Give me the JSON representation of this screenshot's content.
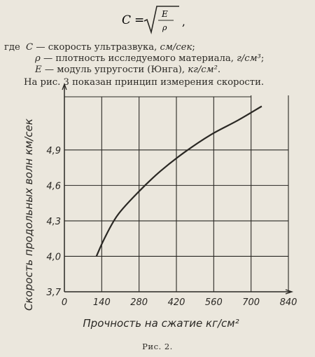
{
  "formula": {
    "lhs": "C",
    "eq": "=",
    "numerator": "E",
    "denominator": "ρ",
    "trailing": ","
  },
  "definitions": [
    {
      "prefix": "где",
      "symbol": "C",
      "text": " — скорость ультразвука, ",
      "unit": "см/сек",
      "tail": ";"
    },
    {
      "prefix": "",
      "symbol": "ρ",
      "text": " — плотность исследуемого материала, ",
      "unit": "г/см³",
      "tail": ";"
    },
    {
      "prefix": "",
      "symbol": "E",
      "text": " — модуль упругости (Юнга), ",
      "unit": "кг/см²",
      "tail": "."
    }
  ],
  "intro_line": "На рис. 3 показан принцип измерения скорости.",
  "chart_data": {
    "type": "line",
    "x": [
      120,
      150,
      200,
      280,
      360,
      450,
      550,
      650,
      740
    ],
    "y": [
      4.0,
      4.15,
      4.35,
      4.55,
      4.72,
      4.88,
      5.03,
      5.15,
      5.27
    ],
    "xlabel": "Прочность на сжатие кг/см²",
    "ylabel": "Скорость продольных волн км/сек",
    "x_ticks": [
      "0",
      "140",
      "280",
      "420",
      "560",
      "700",
      "840"
    ],
    "y_ticks": [
      "3,7",
      "4,0",
      "4,3",
      "4,6",
      "4,9"
    ],
    "xlim": [
      0,
      840
    ],
    "ylim": [
      3.7,
      5.35
    ],
    "grid": true
  },
  "caption": "Рис. 2."
}
